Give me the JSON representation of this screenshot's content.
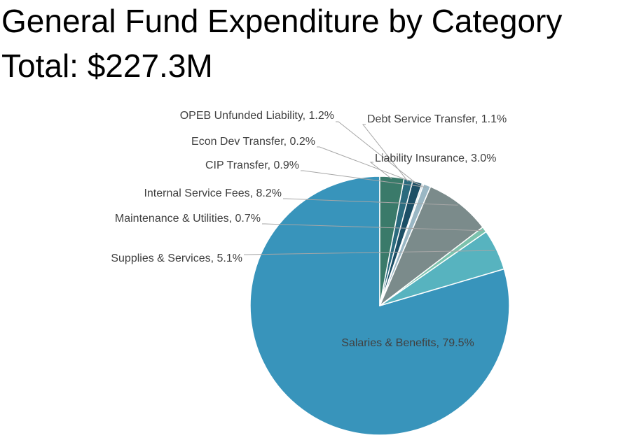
{
  "chart_data": {
    "type": "pie",
    "title": "General Fund Expenditure by Category",
    "subtitle": "Total: $227.3M",
    "units": "percent",
    "slices": [
      {
        "label": "Salaries & Benefits",
        "value": 79.5,
        "display": "Salaries & Benefits, 79.5%",
        "color": "#3894bb",
        "label_position": "inside"
      },
      {
        "label": "Supplies & Services",
        "value": 5.1,
        "display": "Supplies & Services, 5.1%",
        "color": "#57b3bf",
        "label_position": "outside"
      },
      {
        "label": "Maintenance & Utilities",
        "value": 0.7,
        "display": "Maintenance & Utilities, 0.7%",
        "color": "#7cc2ad",
        "label_position": "outside"
      },
      {
        "label": "Internal Service Fees",
        "value": 8.2,
        "display": "Internal Service Fees, 8.2%",
        "color": "#7b8b8b",
        "label_position": "outside"
      },
      {
        "label": "CIP Transfer",
        "value": 0.9,
        "display": "CIP Transfer, 0.9%",
        "color": "#9ab7c4",
        "label_position": "outside"
      },
      {
        "label": "Econ Dev Transfer",
        "value": 0.2,
        "display": "Econ Dev Transfer, 0.2%",
        "color": "#c8d9e0",
        "label_position": "outside"
      },
      {
        "label": "OPEB Unfunded Liability",
        "value": 1.2,
        "display": "OPEB Unfunded Liability, 1.2%",
        "color": "#1c4f66",
        "label_position": "outside"
      },
      {
        "label": "Debt Service Transfer",
        "value": 1.1,
        "display": "Debt Service Transfer, 1.1%",
        "color": "#2b6b7e",
        "label_position": "outside"
      },
      {
        "label": "Liability Insurance",
        "value": 3.0,
        "display": "Liability Insurance, 3.0%",
        "color": "#3a7a6a",
        "label_position": "outside"
      }
    ],
    "start_angle_deg": 0,
    "direction": "counterclockwise",
    "legend": "none",
    "slice_border_color": "#ffffff"
  }
}
